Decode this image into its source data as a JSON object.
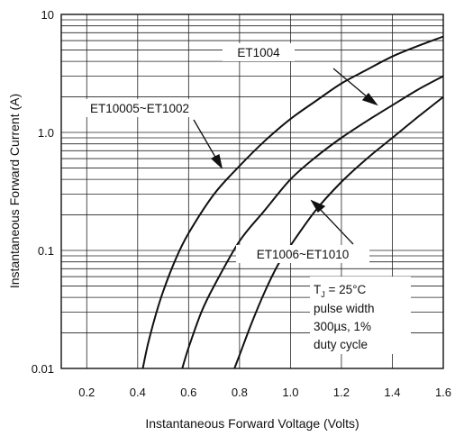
{
  "chart_data": {
    "type": "line",
    "title": "",
    "xlabel": "Instantaneous Forward Voltage (Volts)",
    "ylabel": "Instantaneous Forward Current (A)",
    "xlim": [
      0.1,
      1.6
    ],
    "ylim": [
      0.01,
      10
    ],
    "y_scale": "log",
    "grid": true,
    "x_ticks": [
      {
        "value": 0.2,
        "label": "0.2"
      },
      {
        "value": 0.4,
        "label": "0.4"
      },
      {
        "value": 0.6,
        "label": "0.6"
      },
      {
        "value": 0.8,
        "label": "0.8"
      },
      {
        "value": 1.0,
        "label": "1.0"
      },
      {
        "value": 1.2,
        "label": "1.2"
      },
      {
        "value": 1.4,
        "label": "1.4"
      },
      {
        "value": 1.6,
        "label": "1.6"
      }
    ],
    "y_ticks": [
      {
        "value": 0.01,
        "label": "0.01"
      },
      {
        "value": 0.1,
        "label": "0.1"
      },
      {
        "value": 1,
        "label": "1.0"
      },
      {
        "value": 10,
        "label": "10"
      }
    ],
    "series": [
      {
        "name": "ET10005~ET1002",
        "x": [
          0.42,
          0.44,
          0.47,
          0.5,
          0.55,
          0.6,
          0.7,
          0.8,
          0.9,
          1.0,
          1.1,
          1.2,
          1.3,
          1.4,
          1.5,
          1.6
        ],
        "y": [
          0.01,
          0.016,
          0.028,
          0.045,
          0.085,
          0.14,
          0.3,
          0.52,
          0.85,
          1.3,
          1.85,
          2.6,
          3.4,
          4.4,
          5.4,
          6.5
        ]
      },
      {
        "name": "ET1004",
        "x": [
          0.575,
          0.6,
          0.65,
          0.7,
          0.8,
          0.9,
          1.0,
          1.1,
          1.2,
          1.3,
          1.4,
          1.5,
          1.6
        ],
        "y": [
          0.01,
          0.015,
          0.03,
          0.05,
          0.12,
          0.22,
          0.4,
          0.62,
          0.9,
          1.25,
          1.7,
          2.3,
          3.0
        ]
      },
      {
        "name": "ET1006~ET1010",
        "x": [
          0.78,
          0.8,
          0.85,
          0.9,
          0.95,
          1.0,
          1.1,
          1.2,
          1.3,
          1.4,
          1.5,
          1.6
        ],
        "y": [
          0.01,
          0.013,
          0.025,
          0.045,
          0.075,
          0.11,
          0.22,
          0.38,
          0.6,
          0.9,
          1.35,
          2.0
        ]
      }
    ],
    "annotations": {
      "label_a": "ET1004",
      "label_b": "ET10005~ET1002",
      "label_c": "ET1006~ET1010",
      "cond_1": "T",
      "cond_1_sub": "J",
      "cond_1_rest": " = 25°C",
      "cond_2": "pulse width",
      "cond_3": "300µs, 1%",
      "cond_4": "duty cycle"
    }
  }
}
